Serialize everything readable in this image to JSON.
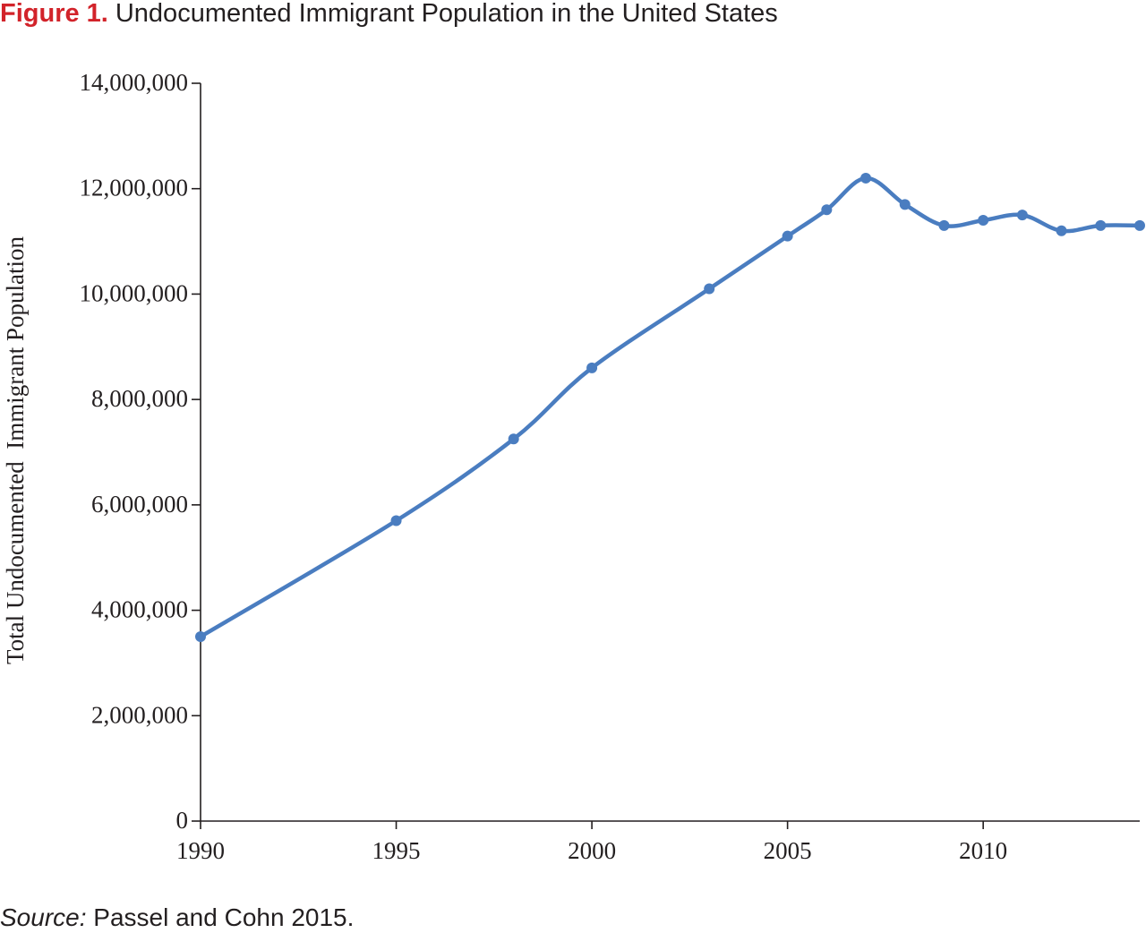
{
  "figure": {
    "label": "Figure 1.",
    "title": "Undocumented Immigrant Population in the United States",
    "source_label": "Source:",
    "source_text": " Passel and Cohn 2015."
  },
  "colors": {
    "figure_label": "#d2232a",
    "text": "#231f20",
    "series_line": "#4a7dc0",
    "axis": "#231f20"
  },
  "chart_data": {
    "type": "line",
    "title": "Undocumented Immigrant Population in the United States",
    "xlabel": "",
    "ylabel": "Total Undocumented  Immigrant Population",
    "xlim": [
      1990,
      2014
    ],
    "ylim": [
      0,
      14000000
    ],
    "x_ticks": [
      1990,
      1995,
      2000,
      2005,
      2010
    ],
    "x_tick_labels": [
      "1990",
      "1995",
      "2000",
      "2005",
      "2010"
    ],
    "y_ticks": [
      0,
      2000000,
      4000000,
      6000000,
      8000000,
      10000000,
      12000000,
      14000000
    ],
    "y_tick_labels": [
      "0",
      "2,000,000",
      "4,000,000",
      "6,000,000",
      "8,000,000",
      "10,000,000",
      "12,000,000",
      "14,000,000"
    ],
    "grid": false,
    "legend": "none",
    "smooth": true,
    "series": [
      {
        "x": [
          1990,
          1995,
          1998,
          2000,
          2003,
          2005,
          2006,
          2007,
          2008,
          2009,
          2010,
          2011,
          2012,
          2013,
          2014
        ],
        "values": [
          3500000,
          5700000,
          7250000,
          8600000,
          10100000,
          11100000,
          11600000,
          12200000,
          11700000,
          11300000,
          11400000,
          11500000,
          11200000,
          11300000,
          11300000
        ]
      }
    ]
  }
}
